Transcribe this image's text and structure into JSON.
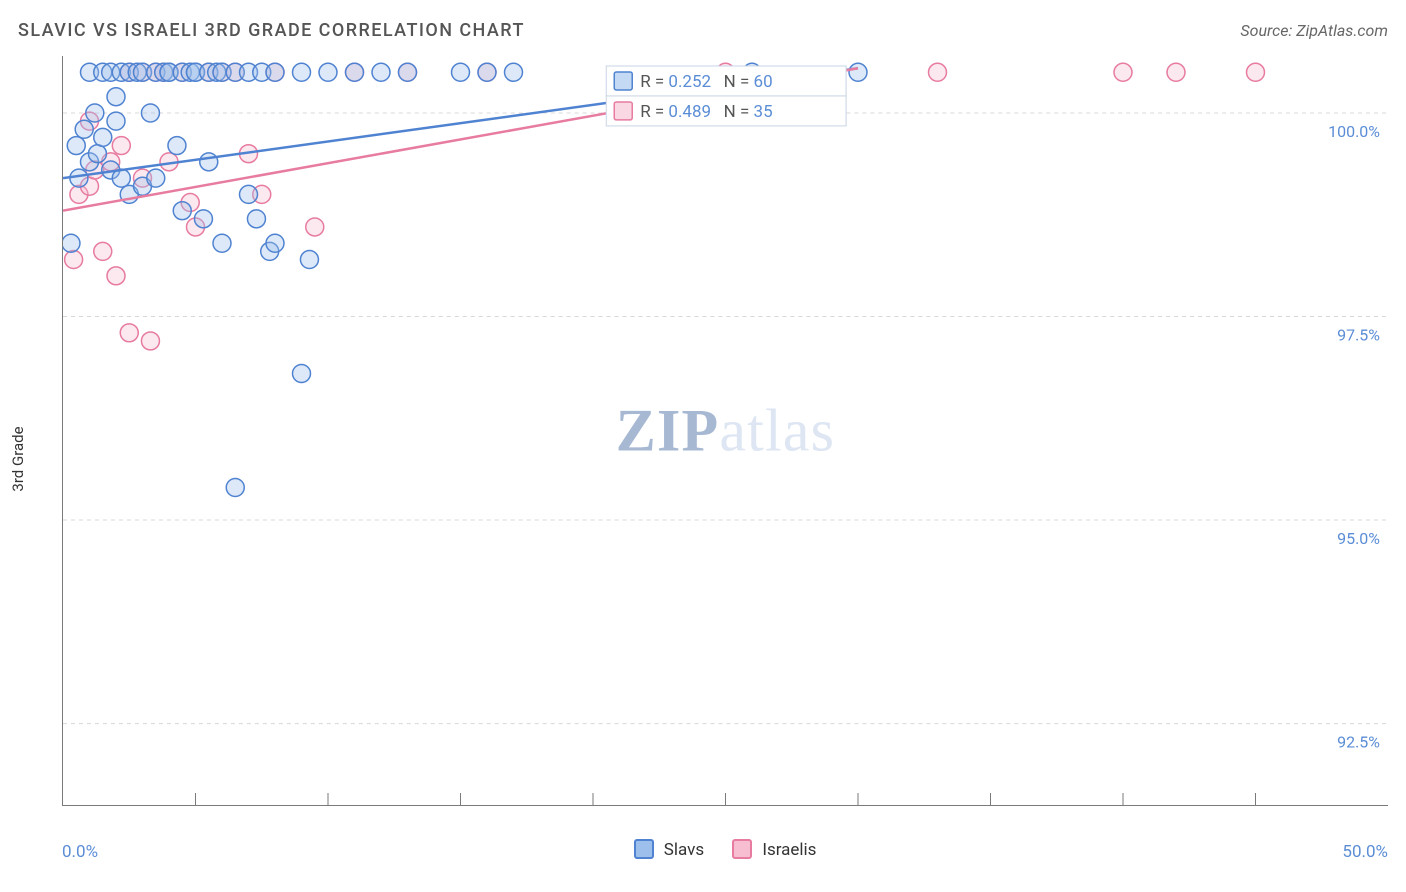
{
  "title": "SLAVIC VS ISRAELI 3RD GRADE CORRELATION CHART",
  "source_label": "Source: ZipAtlas.com",
  "yaxis_label": "3rd Grade",
  "xaxis": {
    "min_label": "0.0%",
    "max_label": "50.0%"
  },
  "watermark": {
    "bold": "ZIP",
    "light": "atlas",
    "bold_color": "#a7b8d3",
    "light_color": "#dde6f2"
  },
  "chart": {
    "type": "scatter-with-regression",
    "x_domain": [
      0,
      50
    ],
    "y_domain": [
      91.5,
      100.7
    ],
    "y_ticks": [
      {
        "v": 100.0,
        "label": "100.0%"
      },
      {
        "v": 97.5,
        "label": "97.5%"
      },
      {
        "v": 95.0,
        "label": "95.0%"
      },
      {
        "v": 92.5,
        "label": "92.5%"
      }
    ],
    "x_minor_ticks": [
      5,
      10,
      15,
      20,
      25,
      30,
      35,
      40,
      45
    ],
    "grid_color": "#d8d8d8",
    "background_color": "#ffffff",
    "marker_radius": 9,
    "marker_stroke_width": 1.5,
    "marker_fill_opacity": 0.35,
    "line_width": 2.5,
    "series": {
      "slavs": {
        "label": "Slavs",
        "stroke": "#4f83d1",
        "fill": "#9dbfec",
        "R_label": "R =",
        "R": "0.252",
        "N_label": "N =",
        "N": "60",
        "trend": {
          "x1": 0,
          "y1": 99.2,
          "x2": 30,
          "y2": 100.55
        },
        "points": [
          [
            0.3,
            98.4
          ],
          [
            0.5,
            99.6
          ],
          [
            0.6,
            99.2
          ],
          [
            0.8,
            99.8
          ],
          [
            1.0,
            99.4
          ],
          [
            1.0,
            100.5
          ],
          [
            1.2,
            100.0
          ],
          [
            1.3,
            99.5
          ],
          [
            1.5,
            100.5
          ],
          [
            1.5,
            99.7
          ],
          [
            1.8,
            99.3
          ],
          [
            1.8,
            100.5
          ],
          [
            2.0,
            99.9
          ],
          [
            2.0,
            100.2
          ],
          [
            2.2,
            99.2
          ],
          [
            2.2,
            100.5
          ],
          [
            2.5,
            99.0
          ],
          [
            2.5,
            100.5
          ],
          [
            2.8,
            100.5
          ],
          [
            3.0,
            99.1
          ],
          [
            3.0,
            100.5
          ],
          [
            3.3,
            100.0
          ],
          [
            3.5,
            100.5
          ],
          [
            3.5,
            99.2
          ],
          [
            3.8,
            100.5
          ],
          [
            4.0,
            100.5
          ],
          [
            4.0,
            100.5
          ],
          [
            4.3,
            99.6
          ],
          [
            4.5,
            98.8
          ],
          [
            4.5,
            100.5
          ],
          [
            4.8,
            100.5
          ],
          [
            5.0,
            100.5
          ],
          [
            5.0,
            100.5
          ],
          [
            5.3,
            98.7
          ],
          [
            5.5,
            100.5
          ],
          [
            5.5,
            99.4
          ],
          [
            5.8,
            100.5
          ],
          [
            6.0,
            98.4
          ],
          [
            6.0,
            100.5
          ],
          [
            6.5,
            100.5
          ],
          [
            7.0,
            99.0
          ],
          [
            7.0,
            100.5
          ],
          [
            7.3,
            98.7
          ],
          [
            7.5,
            100.5
          ],
          [
            7.8,
            98.3
          ],
          [
            8.0,
            100.5
          ],
          [
            8.0,
            98.4
          ],
          [
            9.0,
            96.8
          ],
          [
            9.0,
            100.5
          ],
          [
            9.3,
            98.2
          ],
          [
            10.0,
            100.5
          ],
          [
            11.0,
            100.5
          ],
          [
            12.0,
            100.5
          ],
          [
            13.0,
            100.5
          ],
          [
            15.0,
            100.5
          ],
          [
            16.0,
            100.5
          ],
          [
            17.0,
            100.5
          ],
          [
            6.5,
            95.4
          ],
          [
            30.0,
            100.5
          ],
          [
            26.0,
            100.5
          ]
        ]
      },
      "israelis": {
        "label": "Israelis",
        "stroke": "#e77ba0",
        "fill": "#f6bed0",
        "R_label": "R =",
        "R": "0.489",
        "N_label": "N =",
        "N": "35",
        "trend": {
          "x1": 0,
          "y1": 98.8,
          "x2": 30,
          "y2": 100.55
        },
        "points": [
          [
            0.4,
            98.2
          ],
          [
            0.6,
            99.0
          ],
          [
            1.0,
            99.1
          ],
          [
            1.0,
            99.9
          ],
          [
            1.2,
            99.3
          ],
          [
            1.5,
            98.3
          ],
          [
            1.8,
            99.4
          ],
          [
            2.0,
            98.0
          ],
          [
            2.2,
            99.6
          ],
          [
            2.5,
            100.5
          ],
          [
            2.5,
            97.3
          ],
          [
            3.0,
            99.2
          ],
          [
            3.0,
            100.5
          ],
          [
            3.3,
            97.2
          ],
          [
            3.5,
            100.5
          ],
          [
            3.8,
            100.5
          ],
          [
            4.0,
            99.4
          ],
          [
            4.5,
            100.5
          ],
          [
            4.8,
            98.9
          ],
          [
            5.0,
            98.6
          ],
          [
            5.5,
            100.5
          ],
          [
            6.0,
            100.5
          ],
          [
            6.5,
            100.5
          ],
          [
            7.0,
            99.5
          ],
          [
            7.5,
            99.0
          ],
          [
            8.0,
            100.5
          ],
          [
            9.5,
            98.6
          ],
          [
            11.0,
            100.5
          ],
          [
            13.0,
            100.5
          ],
          [
            16.0,
            100.5
          ],
          [
            25.0,
            100.5
          ],
          [
            33.0,
            100.5
          ],
          [
            40.0,
            100.5
          ],
          [
            42.0,
            100.5
          ],
          [
            45.0,
            100.5
          ]
        ]
      }
    },
    "stats_box": {
      "border_color": "#c8d4e4",
      "bg": "#ffffff",
      "text_color": "#555",
      "value_color": "#5b8dd6"
    },
    "bottom_legend": {
      "text_color": "#333"
    }
  }
}
